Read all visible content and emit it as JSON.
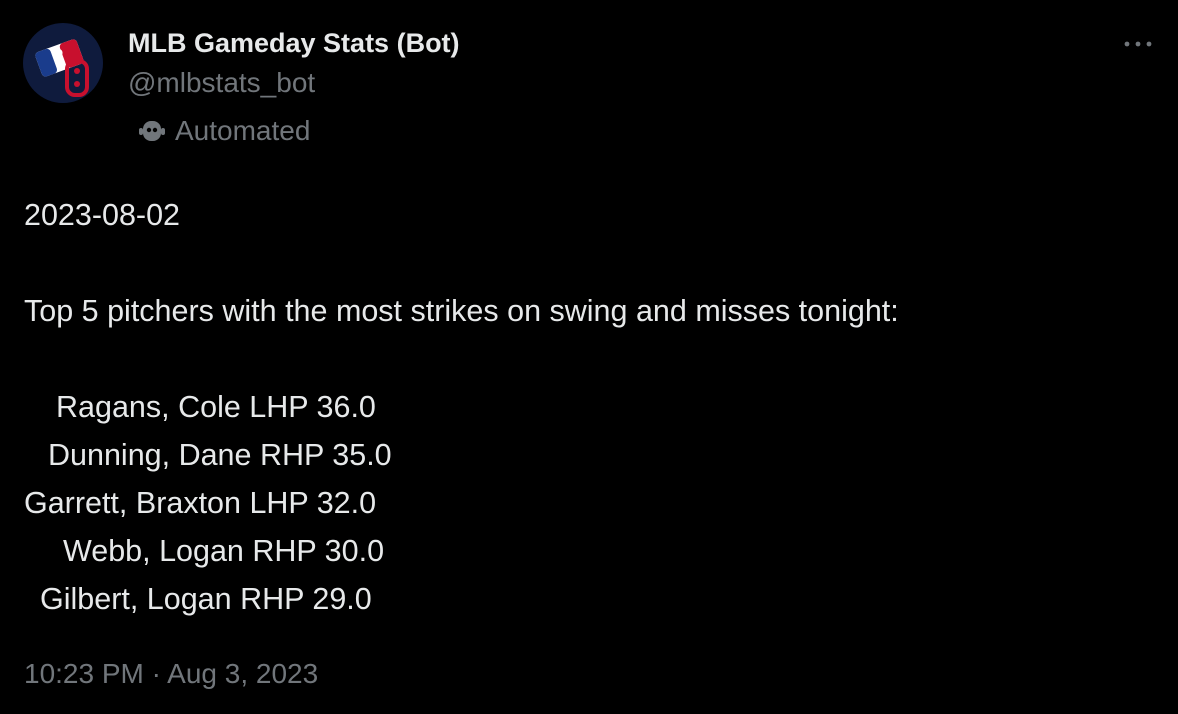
{
  "author": {
    "name": "MLB Gameday Stats (Bot)",
    "handle": "@mlbstats_bot",
    "label": "Automated"
  },
  "post": {
    "date": "2023-08-02",
    "intro": "Top 5 pitchers with the most strikes on swing and misses tonight:",
    "lines": [
      "Ragans, Cole LHP 36.0",
      "Dunning, Dane RHP 35.0",
      "Garrett, Braxton LHP 32.0",
      "Webb, Logan RHP 30.0",
      "Gilbert, Logan RHP 29.0"
    ],
    "timestamp": "10:23 PM · Aug 3, 2023"
  }
}
